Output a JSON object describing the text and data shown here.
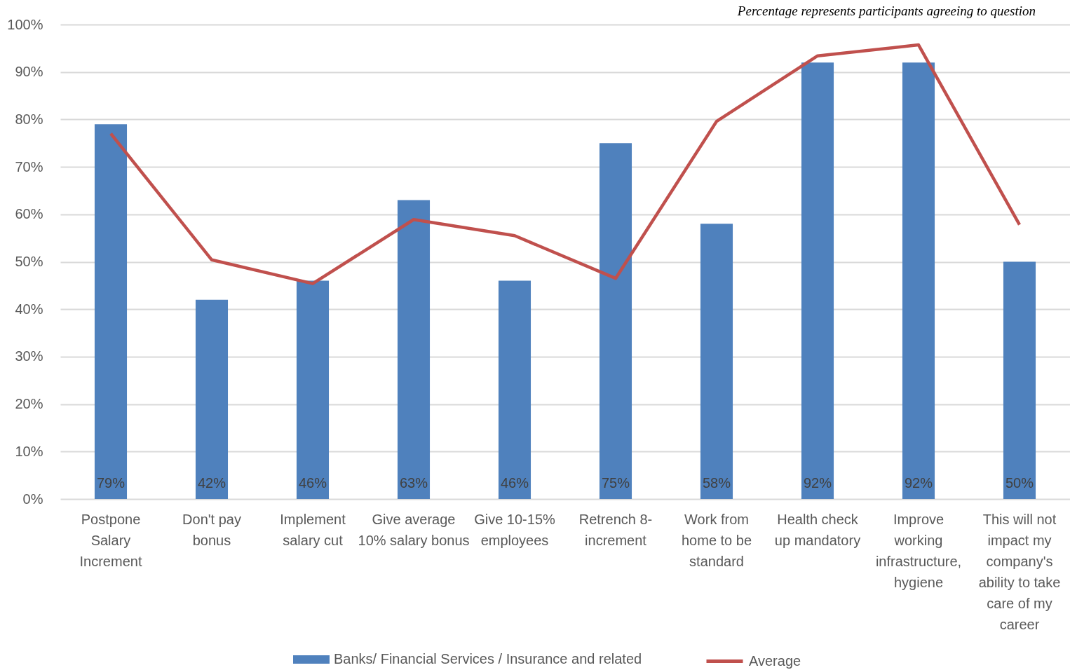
{
  "chart_data": {
    "type": "bar",
    "annotations": [
      "Percentage represents participants agreeing to question"
    ],
    "categories": [
      "Postpone\nSalary\nIncrement",
      "Don't pay\nbonus",
      "Implement\nsalary cut",
      "Give average\n10% salary bonus",
      "Give 10-15%\nemployees",
      "Retrench 8-\nincrement",
      "Work from\nhome to be\nstandard",
      "Health check\nup mandatory",
      "Improve\nworking\ninfrastructure,\nhygiene",
      "This will not\nimpact my\ncompany's\nability to take\ncare of my\ncareer"
    ],
    "series": [
      {
        "name": "Banks/ Financial Services / Insurance and related",
        "color": "#4f81bd",
        "values": [
          79,
          42,
          46,
          63,
          46,
          75,
          58,
          92,
          92,
          50
        ],
        "value_labels": [
          "79%",
          "42%",
          "46%",
          "63%",
          "46%",
          "75%",
          "58%",
          "92%",
          "92%",
          "50%"
        ]
      },
      {
        "name": "Average",
        "type": "line",
        "color": "#c0504d",
        "values": [
          77.0,
          50.4,
          45.4,
          58.9,
          55.5,
          46.5,
          79.6,
          93.4,
          95.7,
          57.8
        ]
      }
    ],
    "ylim": [
      0,
      100
    ],
    "yticks": [
      {
        "value": 0,
        "label": "0%"
      },
      {
        "value": 10,
        "label": "10%"
      },
      {
        "value": 20,
        "label": "20%"
      },
      {
        "value": 30,
        "label": "30%"
      },
      {
        "value": 40,
        "label": "40%"
      },
      {
        "value": 50,
        "label": "50%"
      },
      {
        "value": 60,
        "label": "60%"
      },
      {
        "value": 70,
        "label": "70%"
      },
      {
        "value": 80,
        "label": "80%"
      },
      {
        "value": 90,
        "label": "90%"
      },
      {
        "value": 100,
        "label": "100%"
      }
    ],
    "grid": "y",
    "legend": "bottom"
  }
}
